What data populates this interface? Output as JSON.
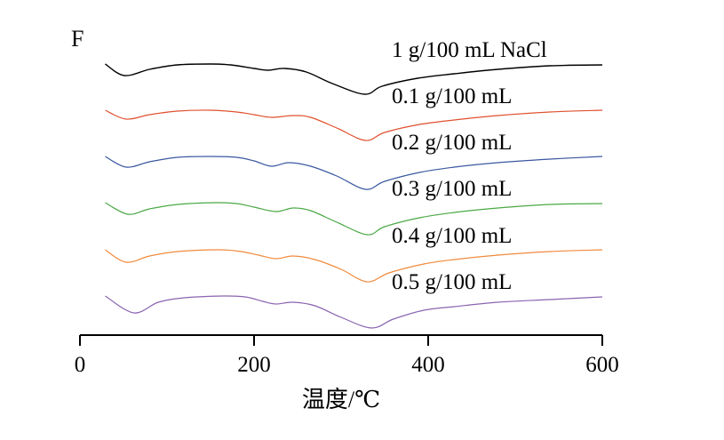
{
  "chart_data": {
    "type": "line",
    "panel_label": "F",
    "title": "",
    "xlabel": "温度/℃",
    "ylabel": "",
    "xlim": [
      0,
      600
    ],
    "xticks": [
      0,
      200,
      400,
      600
    ],
    "xtick_labels": [
      "0",
      "200",
      "400",
      "600"
    ],
    "y_units": "relative heat flow (arbitrary, curves vertically offset)",
    "ylim": [
      -305,
      20
    ],
    "grid": false,
    "legend": "inline labels right of curves",
    "series": [
      {
        "name": "1 g/100 mL NaCl",
        "color": "#000000",
        "offset": 0,
        "x": [
          29,
          51,
          80,
          112,
          150,
          173,
          200,
          216,
          235,
          260,
          290,
          327,
          347,
          388,
          430,
          480,
          540,
          600
        ],
        "y": [
          0,
          -13,
          -6,
          -1,
          0,
          -1,
          -5,
          -7,
          -5,
          -9,
          -22,
          -34,
          -25,
          -16,
          -11,
          -6,
          -2,
          -1
        ]
      },
      {
        "name": "0.1 g/100 mL",
        "color": "#e0502e",
        "offset": -52,
        "x": [
          29,
          53,
          80,
          112,
          150,
          180,
          200,
          220,
          245,
          265,
          295,
          328,
          350,
          390,
          430,
          480,
          540,
          600
        ],
        "y": [
          0,
          -10,
          -5,
          -1,
          0,
          -2,
          -5,
          -8,
          -6,
          -8,
          -20,
          -34,
          -25,
          -16,
          -11,
          -6,
          -2,
          0
        ]
      },
      {
        "name": "0.2 g/100 mL",
        "color": "#3a58a0",
        "offset": -104,
        "x": [
          29,
          53,
          80,
          112,
          150,
          180,
          200,
          220,
          240,
          265,
          295,
          328,
          350,
          390,
          430,
          480,
          540,
          600
        ],
        "y": [
          0,
          -12,
          -6,
          -1,
          0,
          -1,
          -5,
          -11,
          -7,
          -11,
          -22,
          -37,
          -28,
          -18,
          -12,
          -7,
          -3,
          0
        ]
      },
      {
        "name": "0.3 g/100 mL",
        "color": "#4aa844",
        "offset": -156,
        "x": [
          29,
          55,
          80,
          112,
          155,
          180,
          200,
          225,
          245,
          265,
          295,
          330,
          350,
          390,
          430,
          480,
          540,
          600
        ],
        "y": [
          0,
          -13,
          -7,
          -2,
          0,
          -1,
          -5,
          -10,
          -6,
          -9,
          -22,
          -36,
          -27,
          -17,
          -11,
          -6,
          -2,
          -1
        ]
      },
      {
        "name": "0.4 g/100 mL",
        "color": "#f08a3c",
        "offset": -209,
        "x": [
          29,
          53,
          80,
          112,
          160,
          185,
          205,
          225,
          245,
          270,
          300,
          330,
          355,
          395,
          430,
          480,
          540,
          600
        ],
        "y": [
          0,
          -14,
          -7,
          -2,
          0,
          -2,
          -6,
          -10,
          -7,
          -11,
          -22,
          -36,
          -26,
          -16,
          -11,
          -6,
          -2,
          0
        ]
      },
      {
        "name": "0.5 g/100 mL",
        "color": "#8a64b0",
        "offset": -261,
        "x": [
          29,
          62,
          90,
          120,
          165,
          190,
          210,
          225,
          245,
          270,
          300,
          335,
          360,
          395,
          430,
          480,
          540,
          600
        ],
        "y": [
          0,
          -19,
          -7,
          -2,
          0,
          -1,
          -6,
          -9,
          -7,
          -11,
          -24,
          -36,
          -26,
          -16,
          -12,
          -7,
          -4,
          -1
        ]
      }
    ]
  }
}
